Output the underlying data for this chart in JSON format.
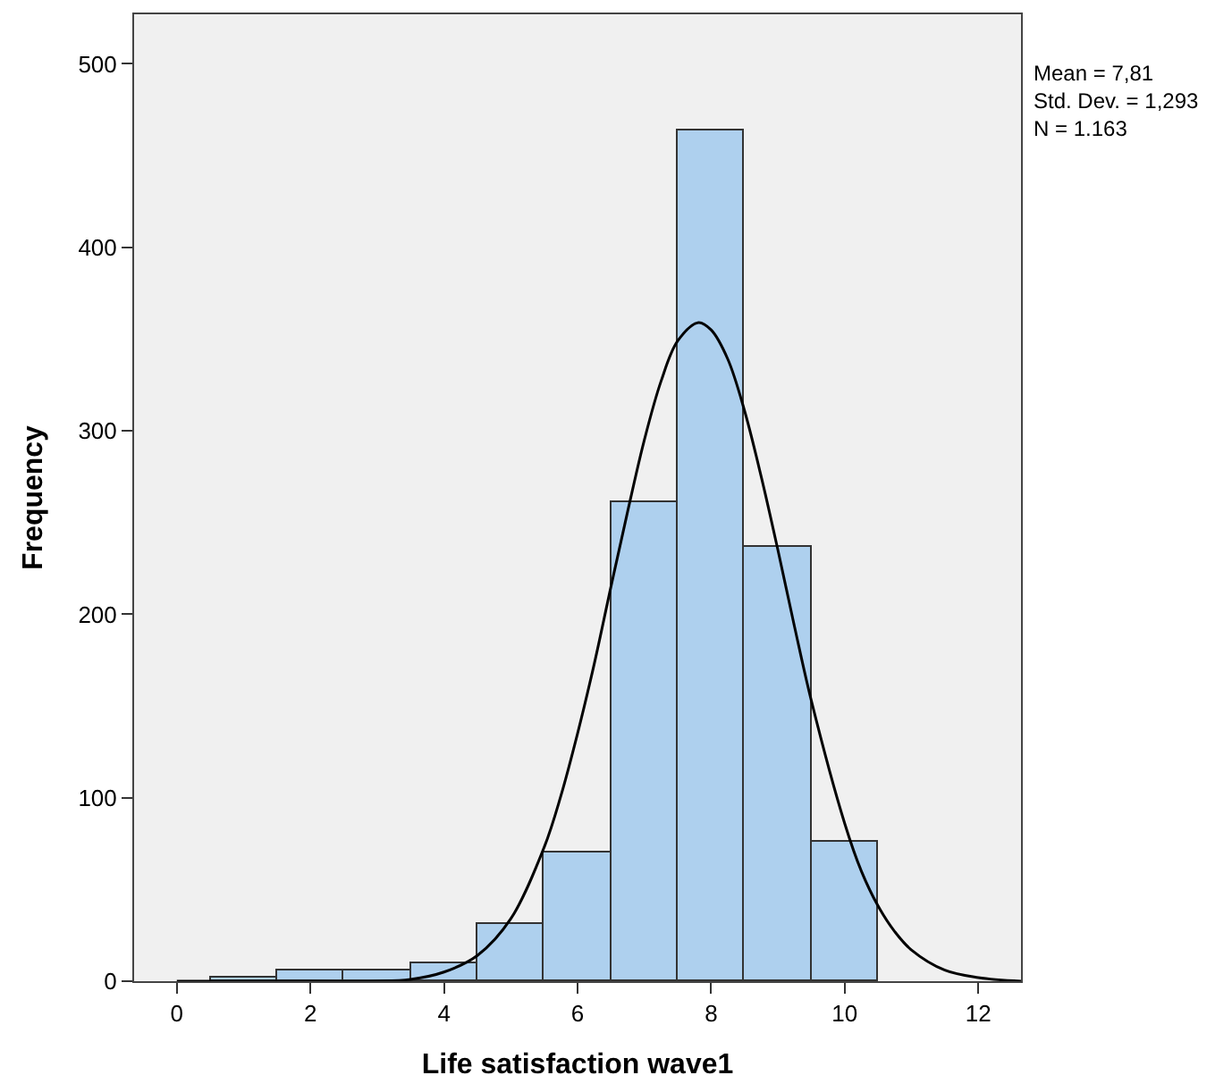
{
  "chart_data": {
    "type": "histogram",
    "xlabel": "Life satisfaction wave1",
    "ylabel": "Frequency",
    "bins": [
      0.5,
      1.5,
      2.5,
      3.5,
      4.5,
      5.5,
      6.5,
      7.5,
      8.5,
      9.5,
      10.5
    ],
    "series": [
      {
        "color": "#aed0ee",
        "values": [
          2,
          6,
          6,
          10,
          31,
          70,
          261,
          464,
          237,
          76
        ]
      },
      {
        "type": "line",
        "color": "#000000",
        "x": [
          0,
          2,
          3,
          3.5,
          4,
          4.5,
          5,
          5.5,
          5.75,
          6,
          6.25,
          6.5,
          6.75,
          7,
          7.25,
          7.5,
          7.81,
          8,
          8.25,
          8.5,
          8.75,
          9,
          9.25,
          9.5,
          10,
          10.25,
          10.5,
          10.75,
          11,
          11.5,
          12,
          12.64
        ],
        "values": [
          0,
          0,
          0,
          1,
          5,
          14,
          34,
          73,
          101,
          135,
          173,
          215,
          256,
          295,
          327,
          349,
          359,
          355,
          339,
          311,
          275,
          235,
          193,
          153,
          86,
          60,
          41,
          27,
          17,
          6,
          2,
          0
        ]
      }
    ],
    "xlim": [
      -0.64,
      12.64
    ],
    "xticks": [
      0,
      2,
      4,
      6,
      8,
      10,
      12
    ],
    "ylim": [
      0,
      527
    ],
    "yticks": [
      0,
      100,
      200,
      300,
      400,
      500
    ],
    "grid": false,
    "annotations": [
      "Mean = 7,81",
      "Std. Dev. = 1,293",
      "N = 1.163"
    ]
  }
}
